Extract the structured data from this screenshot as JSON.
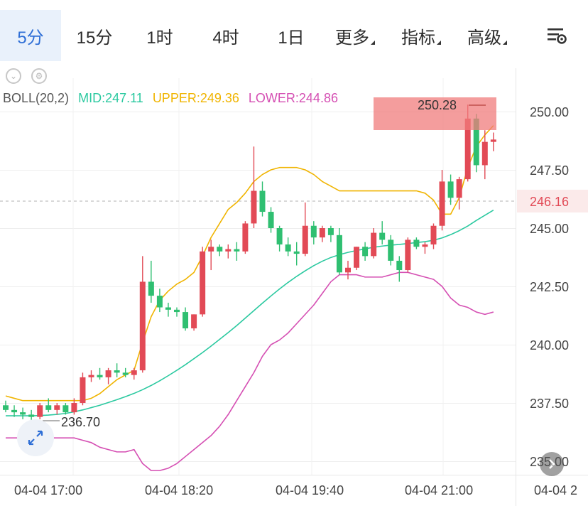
{
  "tabs": [
    {
      "label": "5分",
      "active": true
    },
    {
      "label": "15分"
    },
    {
      "label": "1时"
    },
    {
      "label": "4时"
    },
    {
      "label": "1日"
    },
    {
      "label": "更多",
      "dropdown": true
    },
    {
      "label": "指标",
      "dropdown": true
    },
    {
      "label": "高级",
      "dropdown": true
    }
  ],
  "icons": {
    "settings": "chart-settings-icon",
    "collapse": "chevron-down-icon",
    "indicator_settings": "gear-icon",
    "expand": "expand-arrows-icon",
    "scroll_right": "arrow-right-icon"
  },
  "legend": {
    "boll": "BOLL(20,2)",
    "mid": "MID:247.11",
    "upper": "UPPER:249.36",
    "lower": "LOWER:244.86"
  },
  "colors": {
    "up": "#e24a56",
    "down": "#2fbf71",
    "mid": "#2bc9a0",
    "upper": "#f0b400",
    "lower": "#d54fb3",
    "accent": "#2f6fd6"
  },
  "chart_data": {
    "type": "candlestick",
    "ylim": [
      235.0,
      251.5
    ],
    "y_ticks": [
      "250.00",
      "247.50",
      "245.00",
      "242.50",
      "240.00",
      "237.50",
      "235.00"
    ],
    "x_ticks": [
      "04-04 17:00",
      "04-04 18:20",
      "04-04 19:40",
      "04-04 21:00",
      "04-04 2"
    ],
    "current_price": "246.16",
    "high_marker": "250.28",
    "low_marker": "236.70",
    "candles": [
      [
        237.4,
        237.6,
        237.1,
        237.2
      ],
      [
        237.2,
        237.4,
        236.9,
        237.1
      ],
      [
        237.1,
        237.3,
        236.8,
        237.0
      ],
      [
        237.0,
        237.2,
        236.7,
        236.9
      ],
      [
        236.9,
        237.5,
        236.8,
        237.4
      ],
      [
        237.4,
        237.7,
        237.1,
        237.2
      ],
      [
        237.2,
        237.5,
        237.0,
        237.4
      ],
      [
        237.4,
        237.5,
        237.0,
        237.1
      ],
      [
        237.1,
        237.7,
        237.0,
        237.5
      ],
      [
        237.5,
        238.8,
        237.4,
        238.6
      ],
      [
        238.6,
        238.9,
        238.4,
        238.7
      ],
      [
        238.7,
        239.0,
        238.5,
        238.6
      ],
      [
        238.6,
        239.0,
        238.3,
        238.9
      ],
      [
        238.9,
        239.2,
        238.6,
        238.8
      ],
      [
        238.8,
        239.0,
        238.6,
        238.7
      ],
      [
        238.7,
        239.0,
        238.5,
        238.9
      ],
      [
        238.9,
        243.8,
        238.8,
        242.7
      ],
      [
        242.7,
        243.6,
        241.8,
        242.1
      ],
      [
        242.1,
        242.4,
        241.4,
        241.6
      ],
      [
        241.6,
        241.8,
        241.2,
        241.5
      ],
      [
        241.5,
        241.6,
        241.2,
        241.4
      ],
      [
        241.4,
        241.6,
        240.6,
        240.7
      ],
      [
        240.7,
        241.3,
        240.6,
        241.3
      ],
      [
        241.3,
        244.2,
        241.2,
        244.0
      ],
      [
        244.0,
        244.5,
        243.2,
        244.2
      ],
      [
        244.2,
        244.3,
        243.8,
        244.0
      ],
      [
        244.0,
        244.3,
        243.7,
        244.1
      ],
      [
        244.1,
        244.4,
        243.6,
        244.0
      ],
      [
        244.0,
        245.3,
        243.9,
        245.2
      ],
      [
        245.2,
        248.5,
        245.0,
        246.6
      ],
      [
        246.6,
        247.0,
        245.5,
        245.7
      ],
      [
        245.7,
        245.9,
        244.8,
        245.0
      ],
      [
        245.0,
        245.1,
        244.0,
        244.3
      ],
      [
        244.3,
        244.6,
        243.8,
        244.0
      ],
      [
        244.0,
        244.4,
        243.4,
        243.9
      ],
      [
        243.9,
        246.1,
        243.8,
        245.1
      ],
      [
        245.1,
        245.3,
        244.3,
        244.6
      ],
      [
        244.6,
        245.1,
        244.4,
        245.0
      ],
      [
        245.0,
        245.1,
        244.4,
        244.7
      ],
      [
        244.7,
        245.0,
        243.0,
        243.1
      ],
      [
        243.1,
        243.6,
        242.8,
        243.3
      ],
      [
        243.3,
        244.2,
        243.2,
        244.2
      ],
      [
        244.2,
        244.4,
        243.6,
        243.8
      ],
      [
        243.8,
        245.0,
        243.7,
        244.8
      ],
      [
        244.8,
        245.3,
        244.3,
        244.5
      ],
      [
        244.5,
        244.7,
        243.4,
        243.6
      ],
      [
        243.6,
        243.8,
        242.7,
        243.2
      ],
      [
        243.2,
        244.6,
        243.1,
        244.5
      ],
      [
        244.5,
        244.6,
        244.1,
        244.2
      ],
      [
        244.2,
        244.4,
        243.9,
        244.3
      ],
      [
        244.3,
        245.2,
        244.1,
        245.1
      ],
      [
        245.1,
        247.5,
        244.9,
        247.0
      ],
      [
        247.0,
        247.3,
        246.0,
        246.3
      ],
      [
        246.3,
        247.2,
        245.8,
        247.1
      ],
      [
        247.1,
        250.3,
        247.0,
        249.7
      ],
      [
        249.7,
        249.9,
        247.4,
        247.7
      ],
      [
        247.7,
        249.2,
        247.1,
        248.7
      ],
      [
        248.7,
        249.1,
        248.3,
        248.8
      ]
    ],
    "mid_series": [
      236.95,
      236.95,
      236.95,
      236.95,
      236.96,
      236.98,
      237.01,
      237.05,
      237.12,
      237.2,
      237.3,
      237.4,
      237.52,
      237.64,
      237.77,
      237.91,
      238.07,
      238.25,
      238.45,
      238.67,
      238.9,
      239.14,
      239.4,
      239.66,
      239.94,
      240.23,
      240.52,
      240.82,
      241.14,
      241.46,
      241.78,
      242.09,
      242.39,
      242.67,
      242.93,
      243.17,
      243.39,
      243.58,
      243.74,
      243.86,
      243.96,
      244.04,
      244.11,
      244.18,
      244.23,
      244.27,
      244.3,
      244.34,
      244.38,
      244.42,
      244.48,
      244.58,
      244.72,
      244.89,
      245.09,
      245.33,
      245.55,
      245.77
    ],
    "upper_series": [
      237.8,
      237.7,
      237.6,
      237.6,
      237.6,
      237.6,
      237.6,
      237.6,
      237.6,
      237.6,
      237.7,
      237.9,
      238.2,
      238.5,
      238.7,
      238.9,
      240.1,
      241.2,
      241.9,
      242.3,
      242.6,
      242.8,
      243.1,
      243.8,
      244.6,
      245.2,
      245.8,
      246.1,
      246.5,
      247.0,
      247.3,
      247.5,
      247.6,
      247.6,
      247.6,
      247.5,
      247.3,
      247.0,
      246.8,
      246.6,
      246.6,
      246.6,
      246.6,
      246.6,
      246.6,
      246.6,
      246.6,
      246.6,
      246.6,
      246.5,
      246.2,
      245.6,
      245.6,
      246.3,
      247.6,
      248.5,
      249.0,
      249.4
    ],
    "lower_series": [
      236.0,
      236.0,
      236.0,
      236.0,
      236.0,
      236.0,
      236.0,
      236.0,
      236.0,
      235.9,
      235.8,
      235.6,
      235.5,
      235.4,
      235.4,
      235.5,
      234.9,
      234.6,
      234.6,
      234.7,
      234.9,
      235.2,
      235.5,
      235.8,
      236.1,
      236.5,
      237.0,
      237.6,
      238.2,
      238.8,
      239.5,
      240.0,
      240.2,
      240.5,
      240.9,
      241.3,
      241.7,
      242.2,
      242.7,
      243.0,
      243.0,
      243.0,
      242.9,
      242.9,
      242.9,
      243.0,
      243.1,
      243.1,
      243.0,
      242.9,
      242.8,
      242.5,
      242.0,
      241.7,
      241.6,
      241.4,
      241.3,
      241.4
    ]
  }
}
